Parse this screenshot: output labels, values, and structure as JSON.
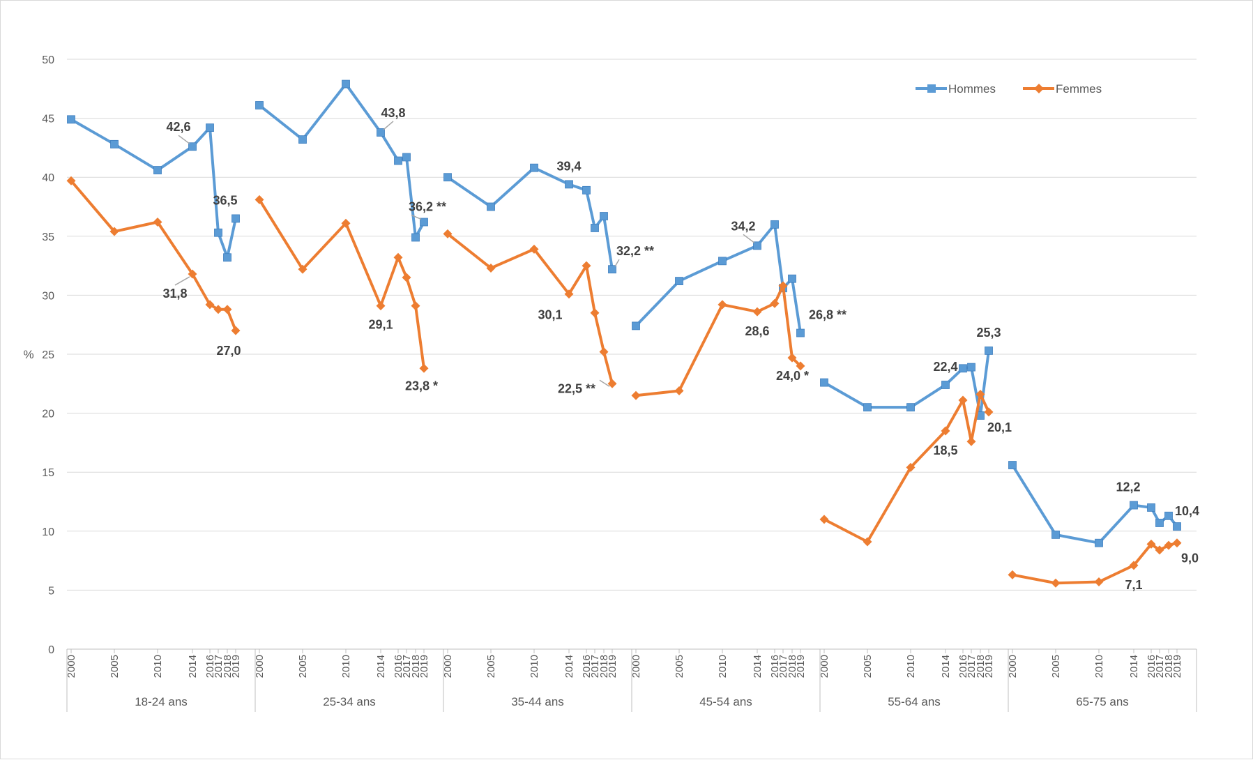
{
  "chart_data": {
    "type": "line",
    "ylabel": "%",
    "ylim": [
      0,
      50
    ],
    "yticks": [
      "0",
      "5",
      "10",
      "15",
      "20",
      "25",
      "30",
      "35",
      "40",
      "45",
      "50"
    ],
    "grid": true,
    "legend_position": "top-right",
    "years": [
      "2000",
      "2005",
      "2010",
      "2014",
      "2016",
      "2017",
      "2018",
      "2019"
    ],
    "groups": [
      "18-24 ans",
      "25-34 ans",
      "35-44 ans",
      "45-54 ans",
      "55-64 ans",
      "65-75 ans"
    ],
    "series": [
      {
        "name": "Hommes",
        "color": "#5b9bd5",
        "marker": "square",
        "values": [
          [
            44.9,
            42.8,
            40.6,
            42.6,
            44.2,
            35.3,
            33.2,
            36.5
          ],
          [
            46.1,
            43.2,
            47.9,
            43.8,
            41.4,
            41.7,
            34.9,
            36.2
          ],
          [
            40.0,
            37.5,
            40.8,
            39.4,
            38.9,
            35.7,
            36.7,
            32.2
          ],
          [
            27.4,
            31.2,
            32.9,
            34.2,
            36.0,
            30.6,
            31.4,
            26.8
          ],
          [
            22.6,
            20.5,
            20.5,
            22.4,
            23.8,
            23.9,
            19.8,
            25.3
          ],
          [
            15.6,
            9.7,
            9.0,
            12.2,
            12.0,
            10.7,
            11.3,
            10.4
          ]
        ]
      },
      {
        "name": "Femmes",
        "color": "#ed7d31",
        "marker": "diamond",
        "values": [
          [
            39.7,
            35.4,
            36.2,
            31.8,
            29.2,
            28.8,
            28.8,
            27.0
          ],
          [
            38.1,
            32.2,
            36.1,
            29.1,
            33.2,
            31.5,
            29.1,
            23.8
          ],
          [
            35.2,
            32.3,
            33.9,
            30.1,
            32.5,
            28.5,
            25.2,
            22.5
          ],
          [
            21.5,
            21.9,
            29.2,
            28.6,
            29.3,
            30.8,
            24.7,
            24.0
          ],
          [
            11.0,
            9.1,
            15.4,
            18.5,
            21.1,
            17.6,
            21.6,
            20.1
          ],
          [
            6.3,
            5.6,
            5.7,
            7.1,
            8.9,
            8.4,
            8.8,
            9.0
          ]
        ]
      }
    ],
    "annotations": [
      {
        "text": "42,6",
        "series": 0,
        "group": 0,
        "year": "2014",
        "leader": true
      },
      {
        "text": "36,5",
        "series": 0,
        "group": 0,
        "year": "2019"
      },
      {
        "text": "31,8",
        "series": 1,
        "group": 0,
        "year": "2014",
        "leader": true
      },
      {
        "text": "27,0",
        "series": 1,
        "group": 0,
        "year": "2019"
      },
      {
        "text": "43,8",
        "series": 0,
        "group": 1,
        "year": "2014",
        "leader": true
      },
      {
        "text": "36,2 **",
        "series": 0,
        "group": 1,
        "year": "2019",
        "leader": true
      },
      {
        "text": "29,1",
        "series": 1,
        "group": 1,
        "year": "2014"
      },
      {
        "text": "23,8 *",
        "series": 1,
        "group": 1,
        "year": "2019"
      },
      {
        "text": "39,4",
        "series": 0,
        "group": 2,
        "year": "2014"
      },
      {
        "text": "32,2 **",
        "series": 0,
        "group": 2,
        "year": "2019",
        "leader": true
      },
      {
        "text": "30,1",
        "series": 1,
        "group": 2,
        "year": "2014"
      },
      {
        "text": "22,5 **",
        "series": 1,
        "group": 2,
        "year": "2019",
        "leader": true
      },
      {
        "text": "34,2",
        "series": 0,
        "group": 3,
        "year": "2014",
        "leader": true
      },
      {
        "text": "26,8 **",
        "series": 0,
        "group": 3,
        "year": "2019"
      },
      {
        "text": "28,6",
        "series": 1,
        "group": 3,
        "year": "2014"
      },
      {
        "text": "24,0 *",
        "series": 1,
        "group": 3,
        "year": "2019"
      },
      {
        "text": "22,4",
        "series": 0,
        "group": 4,
        "year": "2014"
      },
      {
        "text": "25,3",
        "series": 0,
        "group": 4,
        "year": "2019"
      },
      {
        "text": "18,5",
        "series": 1,
        "group": 4,
        "year": "2014"
      },
      {
        "text": "20,1",
        "series": 1,
        "group": 4,
        "year": "2019"
      },
      {
        "text": "12,2",
        "series": 0,
        "group": 5,
        "year": "2014"
      },
      {
        "text": "10,4",
        "series": 0,
        "group": 5,
        "year": "2019"
      },
      {
        "text": "7,1",
        "series": 1,
        "group": 5,
        "year": "2014"
      },
      {
        "text": "9,0",
        "series": 1,
        "group": 5,
        "year": "2019"
      }
    ]
  }
}
